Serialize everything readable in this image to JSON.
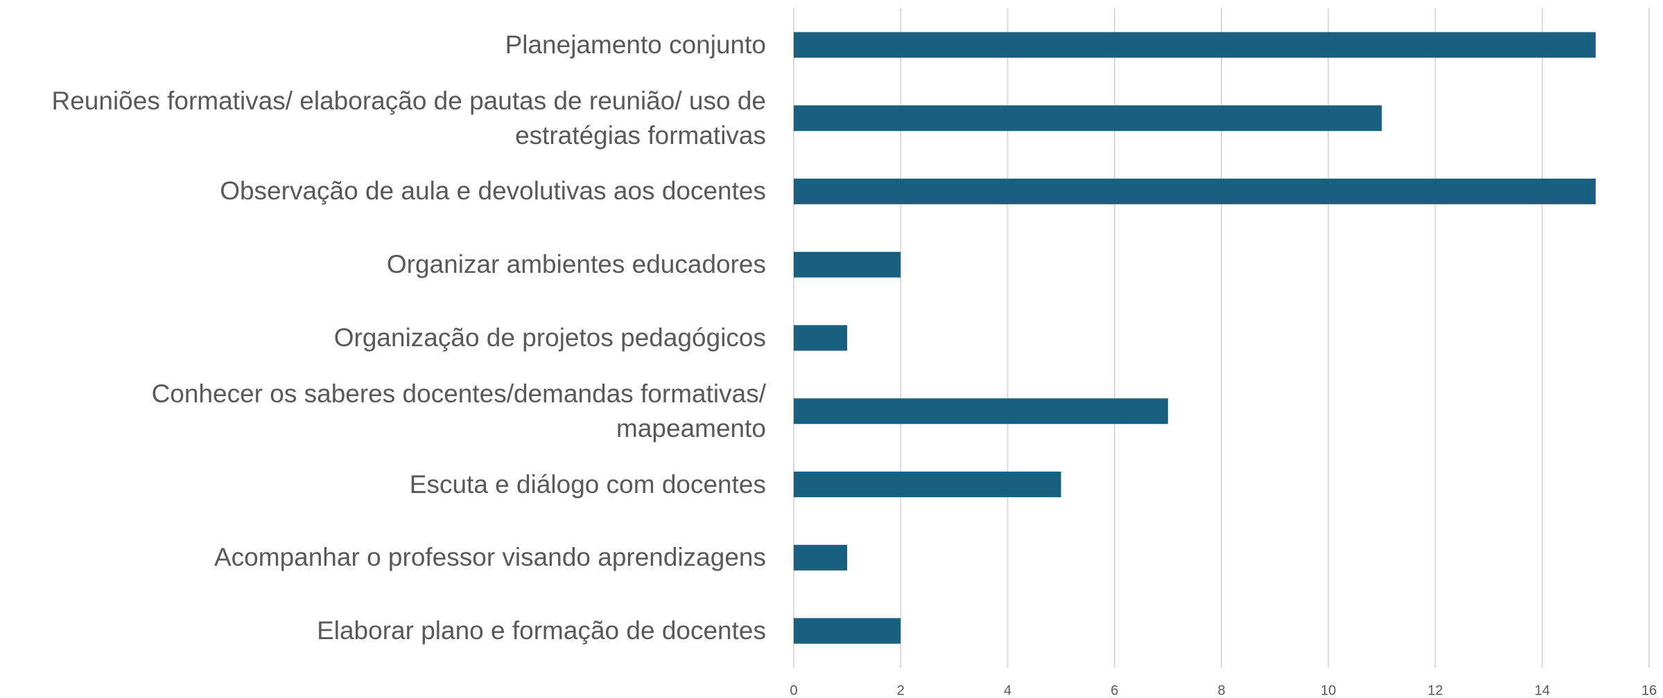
{
  "chart_data": {
    "type": "bar",
    "orientation": "horizontal",
    "categories": [
      "Planejamento conjunto",
      "Reuniões formativas/ elaboração de pautas de reunião/ uso de estratégias formativas",
      "Observação de aula e devolutivas aos docentes",
      "Organizar ambientes educadores",
      "Organização de projetos pedagógicos",
      "Conhecer os saberes docentes/demandas formativas/ mapeamento",
      "Escuta e diálogo com docentes",
      "Acompanhar o professor visando aprendizagens",
      "Elaborar plano e formação de docentes"
    ],
    "values": [
      15,
      11,
      15,
      2,
      1,
      7,
      5,
      1,
      2
    ],
    "color": "#185f80",
    "xlim": [
      0,
      16
    ],
    "xticks": [
      0,
      2,
      4,
      6,
      8,
      10,
      12,
      14,
      16
    ],
    "grid": true
  }
}
